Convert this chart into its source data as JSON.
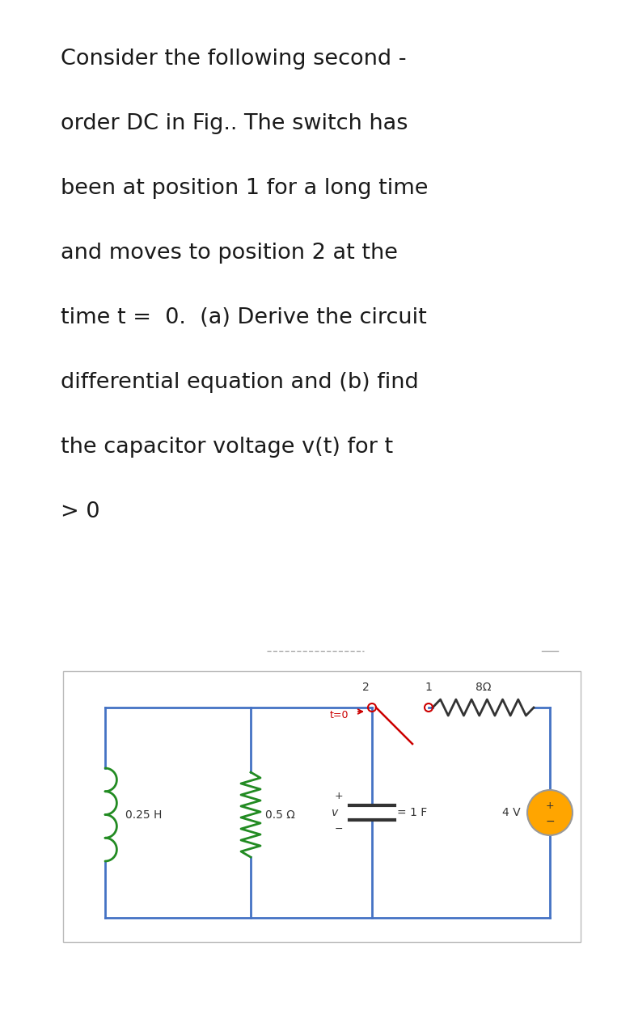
{
  "text_lines": [
    "Consider the following second -",
    "order DC in Fig.. The switch has",
    "been at position 1 for a long time",
    "and moves to position 2 at the",
    "time t =  0.  (a) Derive the circuit",
    "differential equation and (b) find",
    "the capacitor voltage v(t) for t",
    "> 0"
  ],
  "text_color": "#1a1a1a",
  "bg_color": "#ffffff",
  "wire_color": "#4472c4",
  "inductor_color": "#228B22",
  "resistor1_color": "#228B22",
  "switch_color": "#cc0000",
  "label_color": "#333333",
  "source_color": "#ffa500"
}
